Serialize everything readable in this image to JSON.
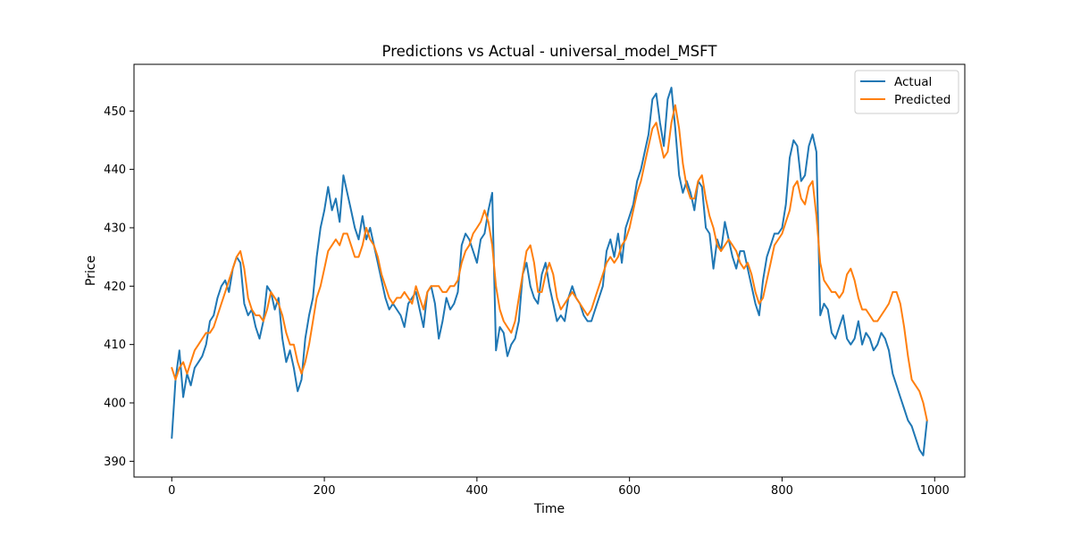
{
  "chart_data": {
    "type": "line",
    "title": "Predictions vs Actual - universal_model_MSFT",
    "xlabel": "Time",
    "ylabel": "Price",
    "xlim": [
      -49.5,
      1039.5
    ],
    "ylim": [
      387.3,
      458.0
    ],
    "xticks": [
      0,
      200,
      400,
      600,
      800,
      1000
    ],
    "yticks": [
      390,
      400,
      410,
      420,
      430,
      440,
      450
    ],
    "grid": false,
    "legend": "top-right",
    "series": [
      {
        "name": "Actual",
        "color": "#1f77b4",
        "x": [
          0,
          5,
          10,
          15,
          20,
          25,
          30,
          35,
          40,
          45,
          50,
          55,
          60,
          65,
          70,
          75,
          80,
          85,
          90,
          95,
          100,
          105,
          110,
          115,
          120,
          125,
          130,
          135,
          140,
          145,
          150,
          155,
          160,
          165,
          170,
          175,
          180,
          185,
          190,
          195,
          200,
          205,
          210,
          215,
          220,
          225,
          230,
          235,
          240,
          245,
          250,
          255,
          260,
          265,
          270,
          275,
          280,
          285,
          290,
          295,
          300,
          305,
          310,
          315,
          320,
          325,
          330,
          335,
          340,
          345,
          350,
          355,
          360,
          365,
          370,
          375,
          380,
          385,
          390,
          395,
          400,
          405,
          410,
          415,
          420,
          425,
          430,
          435,
          440,
          445,
          450,
          455,
          460,
          465,
          470,
          475,
          480,
          485,
          490,
          495,
          500,
          505,
          510,
          515,
          520,
          525,
          530,
          535,
          540,
          545,
          550,
          555,
          560,
          565,
          570,
          575,
          580,
          585,
          590,
          595,
          600,
          605,
          610,
          615,
          620,
          625,
          630,
          635,
          640,
          645,
          650,
          655,
          660,
          665,
          670,
          675,
          680,
          685,
          690,
          695,
          700,
          705,
          710,
          715,
          720,
          725,
          730,
          735,
          740,
          745,
          750,
          755,
          760,
          765,
          770,
          775,
          780,
          785,
          790,
          795,
          800,
          805,
          810,
          815,
          820,
          825,
          830,
          835,
          840,
          845,
          850,
          855,
          860,
          865,
          870,
          875,
          880,
          885,
          890,
          895,
          900,
          905,
          910,
          915,
          920,
          925,
          930,
          935,
          940,
          945,
          950,
          955,
          960,
          965,
          970,
          975,
          980,
          985,
          990
        ],
        "y": [
          394,
          404,
          409,
          401,
          405,
          403,
          406,
          407,
          408,
          410,
          414,
          415,
          418,
          420,
          421,
          419,
          423,
          425,
          424,
          417,
          415,
          416,
          413,
          411,
          414,
          420,
          419,
          416,
          418,
          411,
          407,
          409,
          406,
          402,
          404,
          411,
          415,
          418,
          425,
          430,
          433,
          437,
          433,
          435,
          431,
          439,
          436,
          433,
          430,
          428,
          432,
          428,
          430,
          427,
          424,
          421,
          418,
          416,
          417,
          416,
          415,
          413,
          417,
          418,
          419,
          416,
          413,
          419,
          420,
          417,
          411,
          414,
          418,
          416,
          417,
          419,
          427,
          429,
          428,
          426,
          424,
          428,
          429,
          433,
          436,
          409,
          413,
          412,
          408,
          410,
          411,
          414,
          422,
          424,
          420,
          418,
          417,
          422,
          424,
          420,
          417,
          414,
          415,
          414,
          418,
          420,
          418,
          417,
          415,
          414,
          414,
          416,
          418,
          420,
          426,
          428,
          425,
          429,
          424,
          430,
          432,
          434,
          438,
          440,
          443,
          446,
          452,
          453,
          448,
          444,
          452,
          454,
          447,
          439,
          436,
          438,
          436,
          433,
          438,
          437,
          430,
          429,
          423,
          428,
          426,
          431,
          428,
          425,
          423,
          426,
          426,
          423,
          420,
          417,
          415,
          421,
          425,
          427,
          429,
          429,
          430,
          434,
          442,
          445,
          444,
          438,
          439,
          444,
          446,
          443,
          415,
          417,
          416,
          412,
          411,
          413,
          415,
          411,
          410,
          411,
          414,
          410,
          412,
          411,
          409,
          410,
          412,
          411,
          409,
          405,
          403,
          401,
          399,
          397,
          396,
          394,
          392,
          391,
          397
        ]
      },
      {
        "name": "Predicted",
        "color": "#ff7f0e",
        "x": [
          0,
          5,
          10,
          15,
          20,
          25,
          30,
          35,
          40,
          45,
          50,
          55,
          60,
          65,
          70,
          75,
          80,
          85,
          90,
          95,
          100,
          105,
          110,
          115,
          120,
          125,
          130,
          135,
          140,
          145,
          150,
          155,
          160,
          165,
          170,
          175,
          180,
          185,
          190,
          195,
          200,
          205,
          210,
          215,
          220,
          225,
          230,
          235,
          240,
          245,
          250,
          255,
          260,
          265,
          270,
          275,
          280,
          285,
          290,
          295,
          300,
          305,
          310,
          315,
          320,
          325,
          330,
          335,
          340,
          345,
          350,
          355,
          360,
          365,
          370,
          375,
          380,
          385,
          390,
          395,
          400,
          405,
          410,
          415,
          420,
          425,
          430,
          435,
          440,
          445,
          450,
          455,
          460,
          465,
          470,
          475,
          480,
          485,
          490,
          495,
          500,
          505,
          510,
          515,
          520,
          525,
          530,
          535,
          540,
          545,
          550,
          555,
          560,
          565,
          570,
          575,
          580,
          585,
          590,
          595,
          600,
          605,
          610,
          615,
          620,
          625,
          630,
          635,
          640,
          645,
          650,
          655,
          660,
          665,
          670,
          675,
          680,
          685,
          690,
          695,
          700,
          705,
          710,
          715,
          720,
          725,
          730,
          735,
          740,
          745,
          750,
          755,
          760,
          765,
          770,
          775,
          780,
          785,
          790,
          795,
          800,
          805,
          810,
          815,
          820,
          825,
          830,
          835,
          840,
          845,
          850,
          855,
          860,
          865,
          870,
          875,
          880,
          885,
          890,
          895,
          900,
          905,
          910,
          915,
          920,
          925,
          930,
          935,
          940,
          945,
          950,
          955,
          960,
          965,
          970,
          975,
          980,
          985,
          990
        ],
        "y": [
          406,
          404,
          406,
          407,
          405,
          407,
          409,
          410,
          411,
          412,
          412,
          413,
          415,
          417,
          419,
          421,
          423,
          425,
          426,
          423,
          418,
          416,
          415,
          415,
          414,
          416,
          419,
          418,
          417,
          415,
          412,
          410,
          410,
          407,
          405,
          407,
          410,
          414,
          418,
          420,
          423,
          426,
          427,
          428,
          427,
          429,
          429,
          427,
          425,
          425,
          427,
          430,
          428,
          427,
          425,
          422,
          420,
          418,
          417,
          418,
          418,
          419,
          418,
          417,
          420,
          418,
          416,
          419,
          420,
          420,
          420,
          419,
          419,
          420,
          420,
          421,
          424,
          426,
          427,
          429,
          430,
          431,
          433,
          431,
          427,
          420,
          416,
          414,
          413,
          412,
          414,
          418,
          422,
          426,
          427,
          424,
          419,
          419,
          422,
          424,
          422,
          418,
          416,
          417,
          418,
          419,
          418,
          417,
          416,
          415,
          416,
          418,
          420,
          422,
          424,
          425,
          424,
          425,
          427,
          428,
          430,
          433,
          436,
          438,
          441,
          444,
          447,
          448,
          445,
          442,
          443,
          448,
          451,
          447,
          441,
          437,
          435,
          435,
          438,
          439,
          435,
          432,
          430,
          427,
          426,
          427,
          428,
          427,
          426,
          424,
          423,
          424,
          422,
          419,
          417,
          418,
          421,
          424,
          427,
          428,
          429,
          431,
          433,
          437,
          438,
          435,
          434,
          437,
          438,
          432,
          424,
          421,
          420,
          419,
          419,
          418,
          419,
          422,
          423,
          421,
          418,
          416,
          416,
          415,
          414,
          414,
          415,
          416,
          417,
          419,
          419,
          417,
          413,
          408,
          404,
          403,
          402,
          400,
          397
        ]
      }
    ]
  }
}
